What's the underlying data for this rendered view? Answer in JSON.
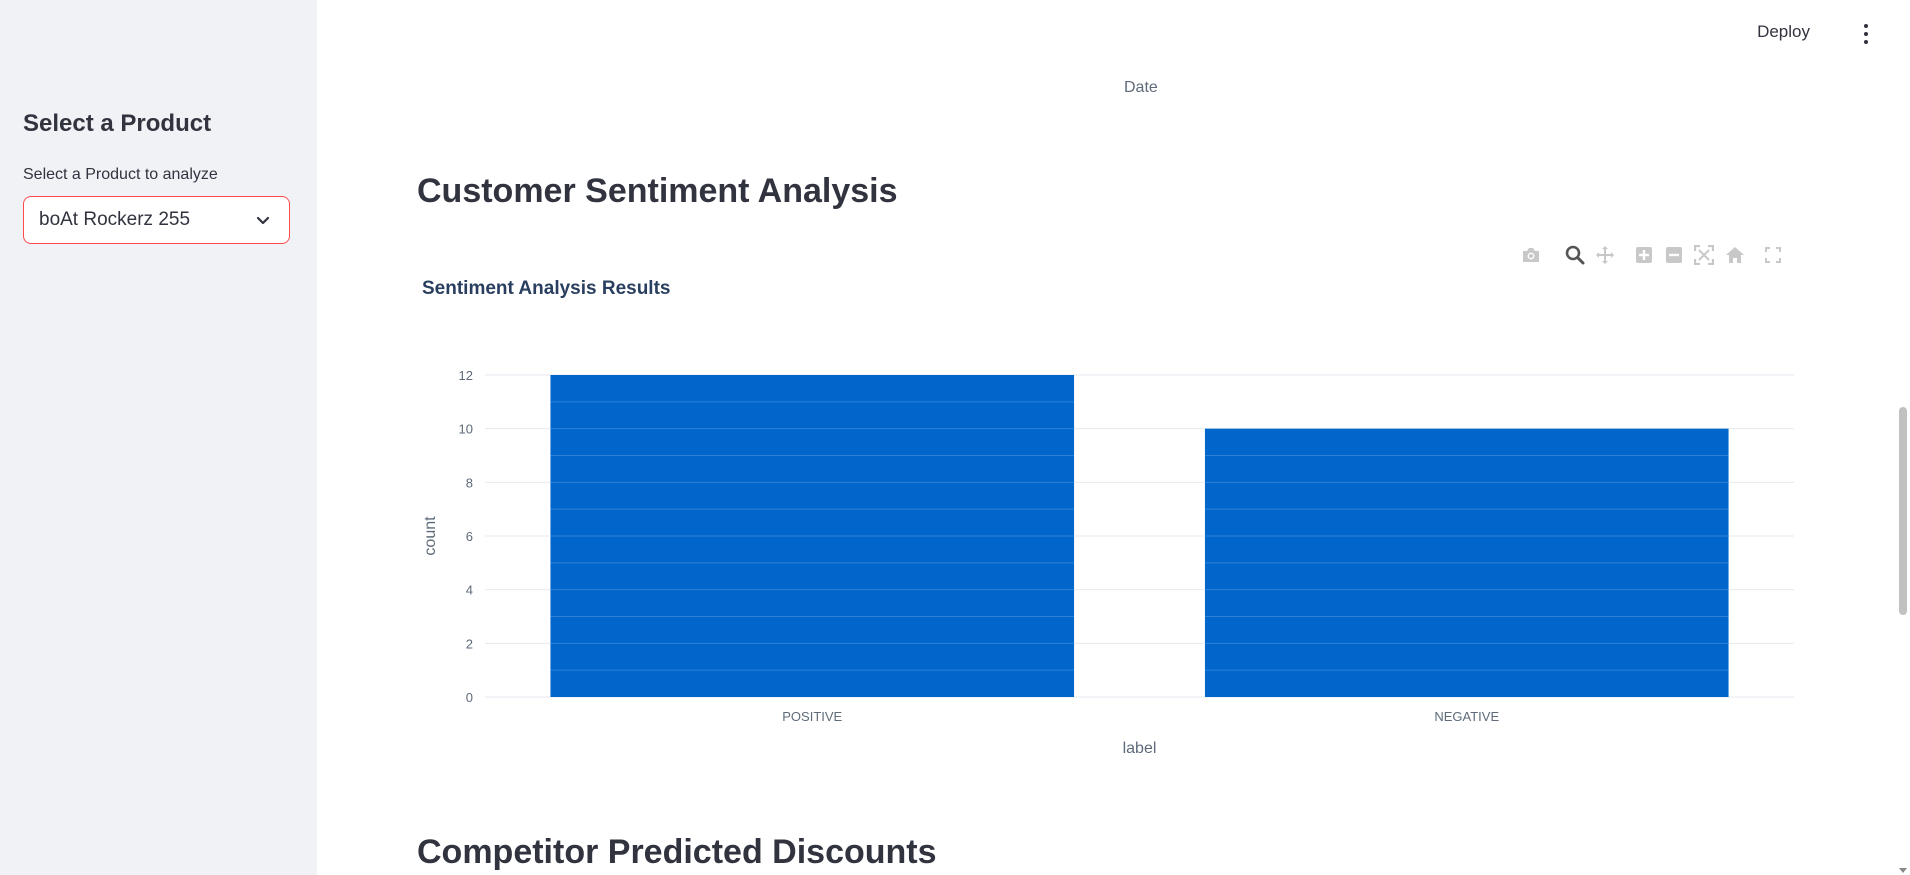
{
  "sidebar": {
    "heading": "Select a Product",
    "select_label": "Select a Product to analyze",
    "select_value": "boAt Rockerz 255",
    "accent_color": "#ff4b4b"
  },
  "header": {
    "deploy_label": "Deploy",
    "menu_icon": "kebab-menu-icon"
  },
  "main": {
    "previous_chart_axis_title": "Date",
    "sections": [
      {
        "title": "Customer Sentiment Analysis"
      },
      {
        "title": "Competitor Predicted Discounts"
      }
    ],
    "modebar_icons": [
      "camera-icon",
      "zoom-icon",
      "pan-icon",
      "zoom-in-icon",
      "zoom-out-icon",
      "autoscale-icon",
      "reset-axes-icon",
      "fullscreen-icon"
    ]
  },
  "chart_data": {
    "type": "bar",
    "title": "Sentiment Analysis Results",
    "categories": [
      "POSITIVE",
      "NEGATIVE"
    ],
    "values": [
      12,
      10
    ],
    "xlabel": "label",
    "ylabel": "count",
    "ylim": [
      0,
      12
    ],
    "yticks": [
      0,
      2,
      4,
      6,
      8,
      10,
      12
    ],
    "bar_color": "#0066cc",
    "grid": true
  }
}
